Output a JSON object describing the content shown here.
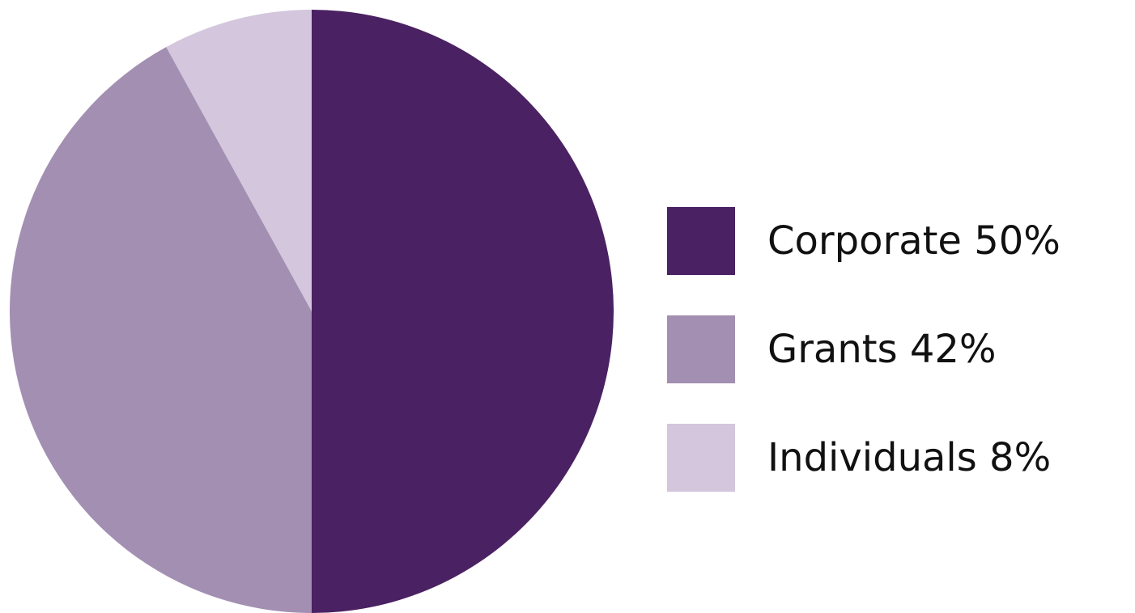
{
  "chart_data": {
    "type": "pie",
    "start_angle": "12 o'clock",
    "direction": "clockwise",
    "legend_position": "right",
    "slices": [
      {
        "label": "Corporate 50%",
        "value": 50,
        "color": "#4a2162"
      },
      {
        "label": "Grants 42%",
        "value": 42,
        "color": "#a28fb2"
      },
      {
        "label": "Individuals 8%",
        "value": 8,
        "color": "#d3c6dd"
      }
    ]
  }
}
